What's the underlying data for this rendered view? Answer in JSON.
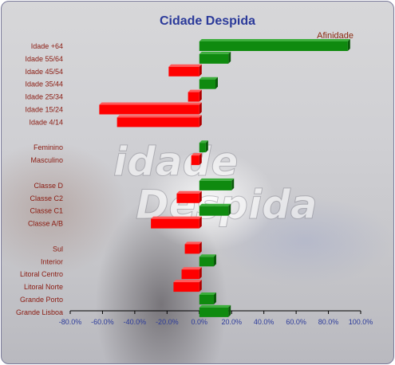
{
  "chart_data": {
    "type": "bar",
    "orientation": "horizontal",
    "title": "Cidade Despida",
    "legend": "Afinidade",
    "legend_position": "top-right",
    "xlim": [
      -80,
      100
    ],
    "xticks": [
      "-80.0%",
      "-60.0%",
      "-40.0%",
      "-20.0%",
      "0.0%",
      "20.0%",
      "40.0%",
      "60.0%",
      "80.0%",
      "100.0%"
    ],
    "positive_color": "#0f8a0f",
    "negative_color": "#ff0000",
    "groups": [
      {
        "categories": [
          "Idade +64",
          "Idade 55/64",
          "Idade 45/54",
          "Idade 35/44",
          "Idade 25/34",
          "Idade 15/24",
          "Idade 4/14"
        ],
        "values": [
          92,
          18,
          -19,
          10,
          -7,
          -62,
          -51
        ]
      },
      {
        "categories": [
          "Feminino",
          "Masculino"
        ],
        "values": [
          4,
          -5
        ]
      },
      {
        "categories": [
          "Classe D",
          "Classe C2",
          "Classe C1",
          "Classe A/B"
        ],
        "values": [
          20,
          -14,
          18,
          -30
        ]
      },
      {
        "categories": [
          "Sul",
          "Interior",
          "Litoral Centro",
          "Litoral Norte",
          "Grande Porto",
          "Grande Lisboa"
        ],
        "values": [
          -9,
          9,
          -11,
          -16,
          9,
          18
        ]
      }
    ]
  },
  "background_watermark": {
    "line1": "idade",
    "line2": "Despida"
  }
}
